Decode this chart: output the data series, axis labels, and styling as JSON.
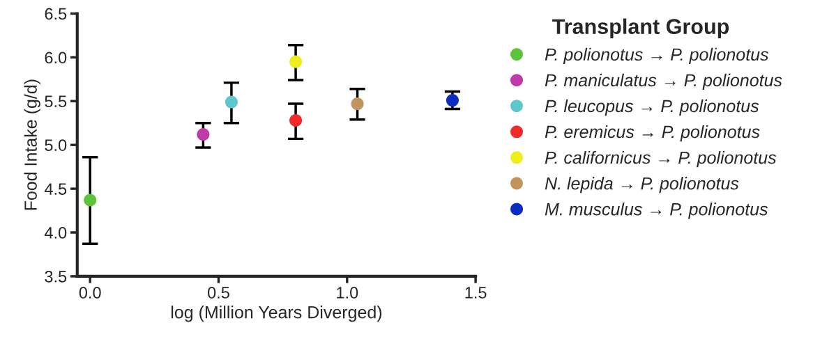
{
  "chart_data": {
    "type": "scatter",
    "xlabel": "log (Million Years Diverged)",
    "ylabel": "Food Intake (g/d)",
    "legend_title": "Transplant Group",
    "legend": "right",
    "grid": false,
    "marker": "circle",
    "xlim": [
      -0.05,
      1.5
    ],
    "ylim": [
      3.5,
      6.5
    ],
    "xticks": [
      {
        "value": 0,
        "label": "0.0"
      },
      {
        "value": 0.5,
        "label": "0.5"
      },
      {
        "value": 1,
        "label": "1.0"
      },
      {
        "value": 1.5,
        "label": "1.5"
      }
    ],
    "yticks": [
      3.5,
      {
        "value": 4,
        "label": "4.0"
      },
      4.5,
      {
        "value": 5,
        "label": "5.0"
      },
      5.5,
      {
        "value": 6,
        "label": "6.0"
      },
      6.5
    ],
    "series": [
      {
        "name": "P. polionotus → P. polionotus",
        "color": "#5cc33b",
        "x": [
          0.0
        ],
        "values": [
          4.37
        ],
        "errors": [
          [
            3.87,
            4.86
          ]
        ]
      },
      {
        "name": "P. maniculatus → P. polionotus",
        "color": "#c03aa8",
        "x": [
          0.44
        ],
        "values": [
          5.12
        ],
        "errors": [
          [
            4.97,
            5.25
          ]
        ]
      },
      {
        "name": "P. leucopus → P. polionotus",
        "color": "#5fc6cc",
        "x": [
          0.55
        ],
        "values": [
          5.49
        ],
        "errors": [
          [
            5.25,
            5.71
          ]
        ]
      },
      {
        "name": "P. eremicus → P. polionotus",
        "color": "#ee2a2a",
        "x": [
          0.8
        ],
        "values": [
          5.28
        ],
        "errors": [
          [
            5.07,
            5.47
          ]
        ]
      },
      {
        "name": "P. californicus → P. polionotus",
        "color": "#eeee1e",
        "x": [
          0.8
        ],
        "values": [
          5.95
        ],
        "errors": [
          [
            5.74,
            6.14
          ]
        ]
      },
      {
        "name": "N. lepida → P. polionotus",
        "color": "#c0945c",
        "x": [
          1.04
        ],
        "values": [
          5.47
        ],
        "errors": [
          [
            5.29,
            5.64
          ]
        ]
      },
      {
        "name": "M. musculus → P. polionotus",
        "color": "#0a2cc0",
        "x": [
          1.41
        ],
        "values": [
          5.51
        ],
        "errors": [
          [
            5.41,
            5.61
          ]
        ]
      }
    ]
  }
}
